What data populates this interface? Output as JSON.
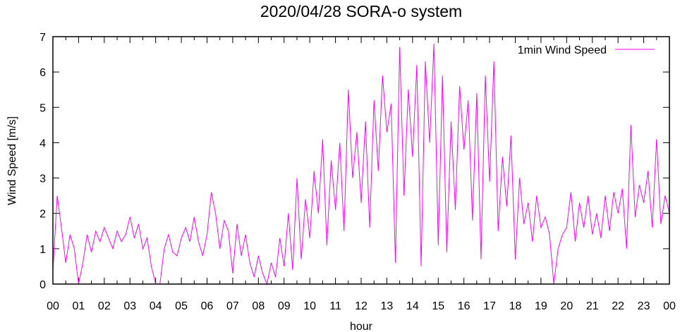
{
  "chart_data": {
    "type": "line",
    "title": "2020/04/28 SORA-o system",
    "xlabel": "hour",
    "ylabel": "Wind Speed [m/s]",
    "ylim": [
      0,
      7
    ],
    "xlim": [
      0,
      24
    ],
    "yticks": [
      "0",
      "1",
      "2",
      "3",
      "4",
      "5",
      "6",
      "7"
    ],
    "xticks": [
      "00",
      "01",
      "02",
      "03",
      "04",
      "05",
      "06",
      "07",
      "08",
      "09",
      "10",
      "11",
      "12",
      "13",
      "14",
      "15",
      "16",
      "17",
      "18",
      "19",
      "20",
      "21",
      "22",
      "23",
      "00"
    ],
    "grid": false,
    "legend_position": "top-right",
    "series": [
      {
        "name": "1min Wind Speed",
        "color": "#ff00ff",
        "x_step_hours": 0.1666667,
        "values": [
          0.4,
          2.5,
          1.6,
          0.6,
          1.4,
          1.0,
          0.0,
          0.6,
          1.4,
          0.9,
          1.5,
          1.2,
          1.6,
          1.3,
          1.0,
          1.5,
          1.2,
          1.4,
          1.9,
          1.3,
          1.7,
          1.0,
          1.3,
          0.5,
          0.0,
          0.0,
          1.0,
          1.4,
          0.9,
          0.8,
          1.3,
          1.6,
          1.2,
          1.9,
          1.2,
          0.8,
          1.4,
          2.6,
          2.0,
          1.0,
          1.8,
          1.5,
          0.3,
          1.7,
          0.8,
          1.4,
          0.6,
          0.2,
          0.8,
          0.3,
          0.0,
          0.6,
          0.2,
          1.3,
          0.5,
          2.0,
          0.4,
          3.0,
          0.7,
          2.4,
          1.3,
          3.2,
          2.0,
          4.1,
          1.1,
          3.5,
          2.1,
          4.0,
          1.5,
          5.5,
          3.0,
          4.3,
          2.3,
          4.6,
          1.6,
          5.2,
          3.2,
          5.9,
          4.3,
          5.1,
          0.6,
          6.7,
          2.5,
          5.5,
          3.6,
          6.2,
          0.5,
          6.3,
          4.0,
          6.8,
          1.1,
          5.9,
          0.9,
          4.6,
          2.1,
          5.6,
          3.8,
          5.2,
          1.8,
          5.4,
          0.7,
          5.9,
          2.9,
          6.3,
          1.5,
          3.6,
          2.2,
          4.2,
          0.7,
          3.0,
          1.7,
          2.3,
          1.2,
          2.5,
          1.6,
          1.9,
          1.4,
          0.0,
          1.0,
          1.4,
          1.6,
          2.6,
          1.2,
          2.3,
          1.6,
          2.5,
          1.4,
          2.0,
          1.3,
          2.5,
          1.5,
          2.6,
          2.0,
          2.7,
          1.0,
          4.5,
          1.9,
          2.8,
          2.3,
          3.2,
          1.6,
          4.1,
          1.7,
          2.5,
          2.0
        ]
      }
    ]
  }
}
